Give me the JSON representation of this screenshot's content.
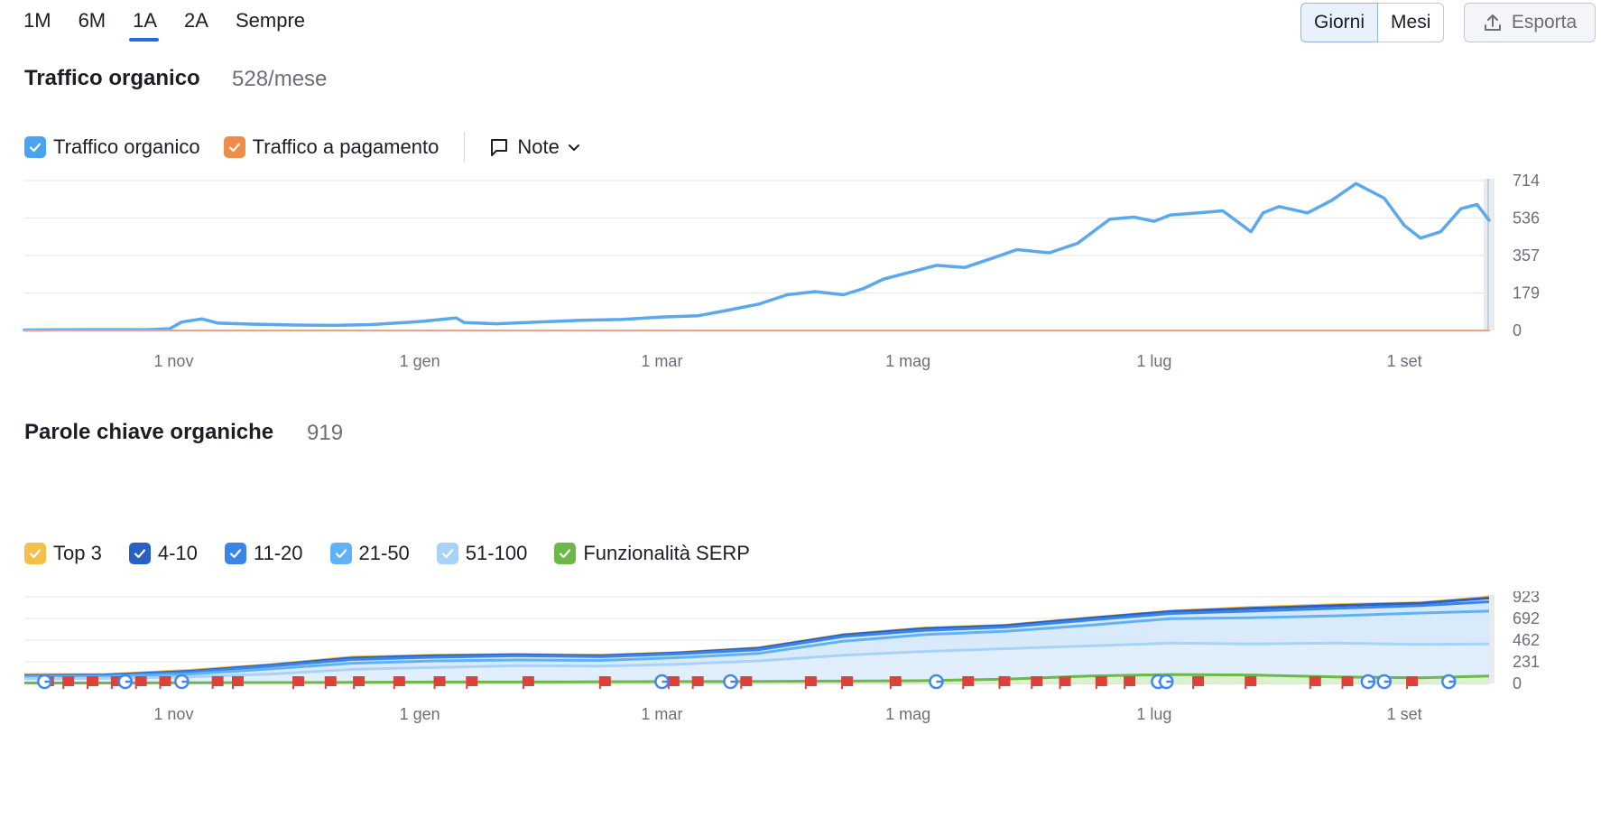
{
  "range_tabs": [
    {
      "label": "1M",
      "active": false
    },
    {
      "label": "6M",
      "active": false
    },
    {
      "label": "1A",
      "active": true
    },
    {
      "label": "2A",
      "active": false
    },
    {
      "label": "Sempre",
      "active": false
    }
  ],
  "granularity": {
    "days_label": "Giorni",
    "months_label": "Mesi",
    "selected": "Giorni"
  },
  "export_label": "Esporta",
  "traffic": {
    "title": "Traffico organico",
    "value": "528/mese",
    "legend": [
      {
        "label": "Traffico organico",
        "color": "#4aa3f0",
        "checked": true
      },
      {
        "label": "Traffico a pagamento",
        "color": "#f08c4a",
        "checked": true
      }
    ],
    "note_label": "Note"
  },
  "keywords": {
    "title": "Parole chiave organiche",
    "value": "919",
    "legend": [
      {
        "label": "Top 3",
        "color": "#f5c048",
        "checked": true
      },
      {
        "label": "4-10",
        "color": "#2860c4",
        "checked": true
      },
      {
        "label": "11-20",
        "color": "#3a86e8",
        "checked": true
      },
      {
        "label": "21-50",
        "color": "#5fb2f5",
        "checked": true
      },
      {
        "label": "51-100",
        "color": "#a8d2fa",
        "checked": true
      },
      {
        "label": "Funzionalità SERP",
        "color": "#6cb84a",
        "checked": true
      }
    ]
  },
  "chart_data": [
    {
      "type": "line",
      "title": "Traffico organico",
      "x_tick_labels": [
        "1 nov",
        "1 gen",
        "1 mar",
        "1 mag",
        "1 lug",
        "1 set"
      ],
      "y_tick_labels": [
        "0",
        "179",
        "357",
        "536",
        "714"
      ],
      "ylim": [
        0,
        714
      ],
      "grid": true,
      "series": [
        {
          "name": "Traffico organico",
          "color": "#5aa8ee",
          "x": [
            "2023-09-25",
            "2023-10-05",
            "2023-10-15",
            "2023-10-25",
            "2023-10-31",
            "2023-11-03",
            "2023-11-08",
            "2023-11-12",
            "2023-11-20",
            "2023-12-01",
            "2023-12-10",
            "2023-12-20",
            "2023-12-30",
            "2024-01-02",
            "2024-01-10",
            "2024-01-12",
            "2024-01-20",
            "2024-01-30",
            "2024-02-10",
            "2024-02-20",
            "2024-03-01",
            "2024-03-10",
            "2024-03-17",
            "2024-03-25",
            "2024-04-01",
            "2024-04-08",
            "2024-04-15",
            "2024-04-20",
            "2024-04-25",
            "2024-05-01",
            "2024-05-08",
            "2024-05-15",
            "2024-05-22",
            "2024-05-28",
            "2024-06-05",
            "2024-06-12",
            "2024-06-20",
            "2024-06-26",
            "2024-07-01",
            "2024-07-05",
            "2024-07-12",
            "2024-07-18",
            "2024-07-25",
            "2024-07-28",
            "2024-08-01",
            "2024-08-08",
            "2024-08-14",
            "2024-08-20",
            "2024-08-27",
            "2024-09-01",
            "2024-09-05",
            "2024-09-10",
            "2024-09-15",
            "2024-09-19",
            "2024-09-22"
          ],
          "values": [
            2,
            3,
            4,
            3,
            8,
            40,
            55,
            35,
            30,
            26,
            24,
            28,
            40,
            44,
            60,
            38,
            32,
            40,
            48,
            52,
            64,
            70,
            95,
            125,
            170,
            185,
            170,
            200,
            245,
            275,
            310,
            300,
            345,
            385,
            370,
            415,
            530,
            540,
            520,
            550,
            560,
            570,
            470,
            560,
            590,
            560,
            620,
            700,
            630,
            500,
            440,
            470,
            580,
            600,
            525
          ]
        },
        {
          "name": "Traffico a pagamento",
          "color": "#f0a27a",
          "x": [
            "2023-09-25",
            "2024-09-22"
          ],
          "values": [
            0,
            0
          ]
        }
      ]
    },
    {
      "type": "area",
      "title": "Parole chiave organiche",
      "x_tick_labels": [
        "1 nov",
        "1 gen",
        "1 mar",
        "1 mag",
        "1 lug",
        "1 set"
      ],
      "y_tick_labels": [
        "0",
        "231",
        "462",
        "692",
        "923"
      ],
      "ylim": [
        0,
        923
      ],
      "grid": true,
      "x": [
        "2023-09-25",
        "2023-10-15",
        "2023-11-05",
        "2023-11-25",
        "2023-12-15",
        "2024-01-05",
        "2024-01-25",
        "2024-02-15",
        "2024-03-05",
        "2024-03-25",
        "2024-04-15",
        "2024-05-05",
        "2024-05-25",
        "2024-06-15",
        "2024-07-05",
        "2024-07-25",
        "2024-08-15",
        "2024-09-05",
        "2024-09-22"
      ],
      "series": [
        {
          "name": "Top 3",
          "color": "#f5c048",
          "values": [
            95,
            95,
            140,
            200,
            280,
            300,
            310,
            300,
            330,
            380,
            520,
            590,
            620,
            700,
            770,
            810,
            840,
            860,
            920
          ]
        },
        {
          "name": "4-10",
          "color": "#2860c4",
          "values": [
            85,
            90,
            130,
            195,
            270,
            295,
            305,
            295,
            325,
            375,
            515,
            585,
            615,
            695,
            765,
            800,
            830,
            855,
            910
          ]
        },
        {
          "name": "11-20",
          "color": "#3a86e8",
          "values": [
            80,
            85,
            120,
            185,
            255,
            280,
            295,
            285,
            315,
            360,
            500,
            565,
            600,
            675,
            745,
            770,
            800,
            830,
            870
          ]
        },
        {
          "name": "21-50",
          "color": "#5fb2f5",
          "values": [
            70,
            75,
            100,
            155,
            215,
            240,
            250,
            245,
            275,
            320,
            450,
            520,
            555,
            620,
            690,
            700,
            720,
            750,
            770
          ]
        },
        {
          "name": "51-100",
          "color": "#a8d2fa",
          "values": [
            50,
            55,
            70,
            100,
            150,
            170,
            190,
            185,
            205,
            240,
            300,
            340,
            370,
            400,
            430,
            420,
            430,
            415,
            420
          ]
        },
        {
          "name": "Funzionalità SERP",
          "color": "#6cb84a",
          "values": [
            5,
            5,
            8,
            10,
            12,
            15,
            15,
            18,
            20,
            22,
            25,
            30,
            45,
            80,
            95,
            90,
            70,
            60,
            80
          ]
        }
      ]
    }
  ]
}
